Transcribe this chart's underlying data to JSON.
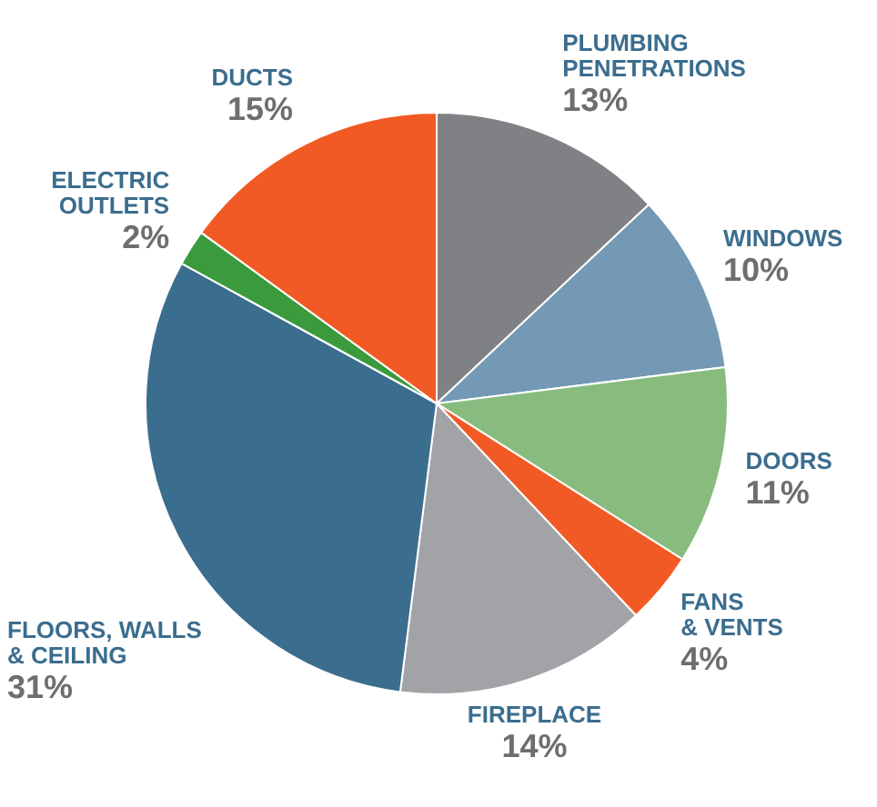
{
  "chart_data": {
    "type": "pie",
    "categories": [
      "PLUMBING PENETRATIONS",
      "WINDOWS",
      "DOORS",
      "FANS & VENTS",
      "FIREPLACE",
      "FLOORS, WALLS & CEILING",
      "ELECTRIC OUTLETS",
      "DUCTS"
    ],
    "values": [
      13,
      10,
      11,
      4,
      14,
      31,
      2,
      15
    ],
    "colors": [
      "#808184",
      "#7499b4",
      "#88bb7e",
      "#f15a24",
      "#a2a3a6",
      "#3b6d8e",
      "#3a9a3c",
      "#f15a24"
    ],
    "value_labels": [
      "13%",
      "10%",
      "11%",
      "4%",
      "14%",
      "31%",
      "2%",
      "15%"
    ]
  }
}
